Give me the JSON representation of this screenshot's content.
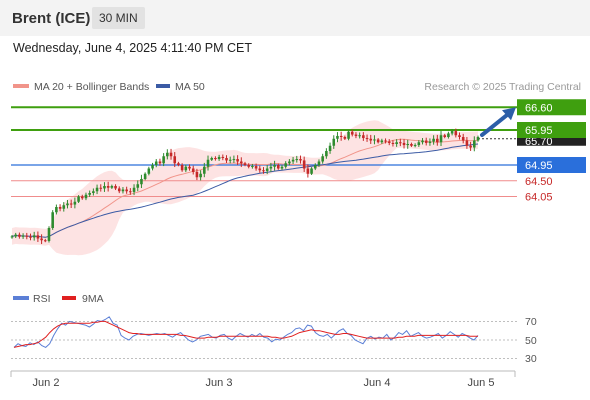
{
  "header": {
    "instrument": "Brent (ICE)",
    "timeframe": "30 MIN"
  },
  "datetime": "Wednesday, June 4, 2025 4:11:40 PM CET",
  "legend": {
    "ma20_label": "MA 20 + Bollinger Bands",
    "ma50_label": "MA 50"
  },
  "credit": "Research © 2025 Trading Central",
  "colors": {
    "up": "#2e8b2e",
    "down": "#c62828",
    "green_level": "#3f9f0f",
    "blue_level": "#2a6fdb",
    "red_level": "#f08c8c",
    "bollinger_fill": "#fde0e0",
    "ma20": "#f1948a",
    "ma50": "#3b5ba5",
    "rsi": "#5b7fd6",
    "rsi_ma": "#e02020",
    "arrow": "#2c5ea8"
  },
  "price_levels": [
    {
      "value": 66.6,
      "label": "66.60",
      "kind": "resistance"
    },
    {
      "value": 65.95,
      "label": "65.95",
      "kind": "resistance"
    },
    {
      "value": 64.95,
      "label": "64.95",
      "kind": "pivot"
    },
    {
      "value": 64.5,
      "label": "64.50",
      "kind": "support"
    },
    {
      "value": 64.05,
      "label": "64.05",
      "kind": "support"
    }
  ],
  "current_price_label": "65.70",
  "rsi_panel": {
    "rsi_label": "RSI",
    "ma_label": "9MA",
    "ticks": [
      "70",
      "50",
      "30"
    ]
  },
  "x_axis": {
    "labels": [
      "Jun 2",
      "Jun 3",
      "Jun 4",
      "Jun 5"
    ]
  },
  "chart_data": [
    {
      "type": "candlestick",
      "title": "Brent (ICE) 30 MIN",
      "y_range": [
        62.2,
        66.9
      ],
      "closes": [
        62.91,
        62.96,
        62.9,
        62.93,
        62.9,
        62.88,
        62.94,
        62.85,
        62.8,
        62.78,
        63.15,
        63.6,
        63.75,
        63.7,
        63.8,
        63.85,
        63.82,
        63.9,
        64.05,
        64.0,
        64.1,
        64.15,
        64.2,
        64.3,
        64.28,
        64.35,
        64.3,
        64.35,
        64.28,
        64.2,
        64.25,
        64.2,
        64.18,
        64.3,
        64.4,
        64.55,
        64.7,
        64.85,
        64.95,
        65.05,
        65.0,
        65.2,
        65.3,
        65.2,
        65.0,
        64.95,
        64.8,
        64.9,
        64.85,
        64.75,
        64.6,
        64.7,
        64.9,
        65.1,
        65.15,
        65.12,
        65.18,
        65.15,
        65.08,
        65.1,
        65.12,
        65.05,
        65.0,
        64.95,
        64.9,
        64.92,
        64.85,
        64.8,
        64.78,
        64.85,
        64.9,
        64.95,
        64.85,
        64.9,
        65.0,
        65.05,
        65.1,
        65.12,
        65.08,
        64.85,
        64.7,
        64.85,
        64.95,
        65.05,
        65.2,
        65.35,
        65.5,
        65.7,
        65.78,
        65.75,
        65.7,
        65.9,
        65.82,
        65.78,
        65.8,
        65.72,
        65.7,
        65.65,
        65.68,
        65.6,
        65.65,
        65.62,
        65.58,
        65.55,
        65.6,
        65.58,
        65.52,
        65.55,
        65.5,
        65.52,
        65.6,
        65.65,
        65.58,
        65.62,
        65.7,
        65.6,
        65.8,
        65.75,
        65.85,
        65.92,
        65.8,
        65.75,
        65.65,
        65.5,
        65.45,
        65.65,
        65.75
      ],
      "moving_averages": [
        "MA 20",
        "MA 50"
      ],
      "projection": {
        "from": 65.75,
        "to": 66.6
      }
    },
    {
      "type": "line",
      "title": "RSI",
      "y_range": [
        20,
        80
      ],
      "ticks": [
        30,
        50,
        70
      ],
      "series": [
        {
          "name": "RSI",
          "values": [
            42,
            46,
            44,
            43,
            47,
            45,
            48,
            44,
            42,
            46,
            55,
            62,
            68,
            66,
            70,
            69,
            68,
            67,
            66,
            64,
            67,
            71,
            70,
            72,
            75,
            68,
            66,
            55,
            52,
            50,
            54,
            56,
            57,
            56,
            55,
            56,
            57,
            56,
            57,
            55,
            53,
            56,
            58,
            54,
            50,
            48,
            50,
            54,
            55,
            56,
            53,
            52,
            55,
            56,
            52,
            50,
            54,
            57,
            55,
            53,
            56,
            54,
            57,
            53,
            52,
            48,
            51,
            50,
            53,
            56,
            58,
            62,
            63,
            60,
            66,
            65,
            58,
            55,
            54,
            56,
            52,
            56,
            60,
            62,
            57,
            55,
            50,
            48,
            46,
            52,
            54,
            51,
            53,
            52,
            56,
            50,
            53,
            58,
            56,
            60,
            54,
            56,
            58,
            54,
            52,
            53,
            55,
            57,
            52,
            55,
            59,
            56,
            53,
            57,
            55,
            52,
            50,
            55
          ]
        },
        {
          "name": "9MA",
          "values": [
            42,
            43,
            44,
            45,
            45,
            46,
            47,
            50,
            53,
            58,
            62,
            65,
            67,
            68,
            68,
            68,
            68,
            68,
            68,
            68,
            69,
            69,
            70,
            70,
            68,
            66,
            64,
            62,
            60,
            58,
            57,
            57,
            56,
            56,
            56,
            56,
            56,
            56,
            56,
            56,
            56,
            56,
            55,
            55,
            54,
            53,
            52,
            52,
            52,
            53,
            53,
            53,
            54,
            54,
            54,
            54,
            54,
            54,
            54,
            54,
            54,
            54,
            54,
            54,
            54,
            53,
            53,
            52,
            52,
            53,
            54,
            56,
            58,
            59,
            60,
            61,
            60,
            60,
            59,
            58,
            57,
            56,
            56,
            57,
            57,
            56,
            55,
            54,
            53,
            52,
            52,
            52,
            52,
            52,
            52,
            52,
            52,
            53,
            53,
            54,
            54,
            54,
            55,
            55,
            55,
            55,
            55,
            55,
            55,
            55,
            55,
            55,
            55,
            55,
            55,
            54,
            54,
            54
          ]
        }
      ]
    }
  ]
}
